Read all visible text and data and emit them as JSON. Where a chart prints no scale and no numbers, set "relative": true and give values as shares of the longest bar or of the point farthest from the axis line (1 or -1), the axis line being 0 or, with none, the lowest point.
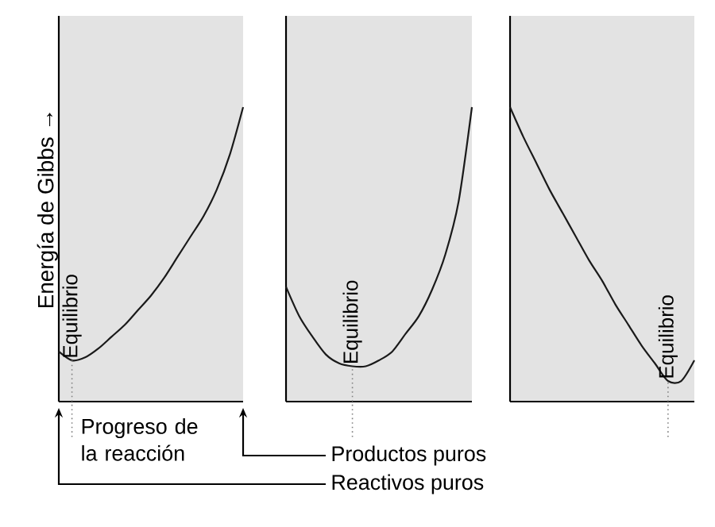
{
  "chart_data": [
    {
      "type": "line",
      "relative": true,
      "ylabel": "Energía de Gibbs →",
      "xlabel": "Progreso de la reacción",
      "categories": [
        null,
        null,
        null,
        null,
        null,
        null,
        null,
        null,
        null,
        null,
        null,
        null,
        null,
        null,
        null
      ],
      "series": [
        {
          "color": "#1a1a1a",
          "values": [
            0.17,
            0.14,
            0.15,
            0.18,
            0.22,
            0.26,
            0.31,
            0.36,
            0.42,
            0.49,
            0.56,
            0.63,
            0.72,
            0.84,
            1.0
          ]
        }
      ],
      "annotations": [
        "Equilibrio",
        "Productos puros",
        "Reactivos puros"
      ]
    },
    {
      "type": "line",
      "relative": true,
      "categories": [
        null,
        null,
        null,
        null,
        null,
        null,
        null,
        null,
        null,
        null,
        null,
        null,
        null,
        null,
        null
      ],
      "series": [
        {
          "color": "#1a1a1a",
          "values": [
            0.39,
            0.29,
            0.22,
            0.16,
            0.13,
            0.12,
            0.12,
            0.14,
            0.17,
            0.23,
            0.29,
            0.38,
            0.5,
            0.68,
            1.0
          ]
        }
      ],
      "annotations": [
        "Equilibrio"
      ]
    },
    {
      "type": "line",
      "relative": true,
      "categories": [
        null,
        null,
        null,
        null,
        null,
        null,
        null,
        null,
        null,
        null,
        null,
        null,
        null,
        null,
        null
      ],
      "series": [
        {
          "color": "#1a1a1a",
          "values": [
            1.0,
            0.9,
            0.81,
            0.72,
            0.64,
            0.56,
            0.48,
            0.41,
            0.33,
            0.26,
            0.19,
            0.13,
            0.07,
            0.07,
            0.14
          ]
        }
      ],
      "annotations": [
        "Equilibrio"
      ]
    }
  ]
}
